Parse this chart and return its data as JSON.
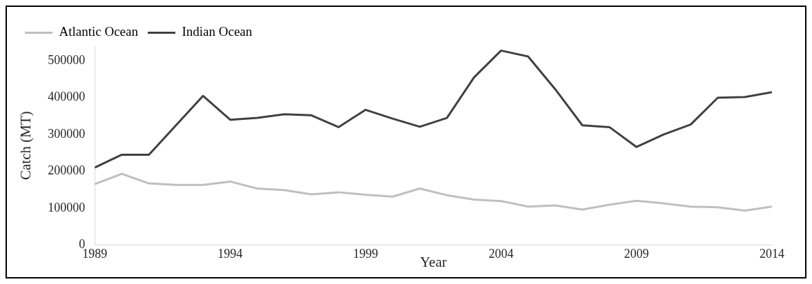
{
  "chart_data": {
    "type": "line",
    "xlabel": "Year",
    "ylabel": "Catch (MT)",
    "x": [
      1989,
      1990,
      1991,
      1992,
      1993,
      1994,
      1995,
      1996,
      1997,
      1998,
      1999,
      2000,
      2001,
      2002,
      2003,
      2004,
      2005,
      2006,
      2007,
      2008,
      2009,
      2010,
      2011,
      2012,
      2013,
      2014
    ],
    "series": [
      {
        "name": "Atlantic Ocean",
        "color": "#bfbfbf",
        "values": [
          165000,
          193000,
          167000,
          163000,
          163000,
          172000,
          153000,
          149000,
          137000,
          143000,
          136000,
          131000,
          153000,
          135000,
          123000,
          119000,
          104000,
          107000,
          96000,
          109000,
          120000,
          113000,
          104000,
          102000,
          93000,
          104000
        ]
      },
      {
        "name": "Indian Ocean",
        "color": "#404040",
        "values": [
          210000,
          245000,
          245000,
          325000,
          405000,
          340000,
          345000,
          355000,
          352000,
          320000,
          367000,
          343000,
          321000,
          345000,
          455000,
          528000,
          512000,
          423000,
          325000,
          320000,
          266000,
          300000,
          327000,
          400000,
          402000,
          415000
        ]
      }
    ],
    "xlim": [
      1989,
      2014
    ],
    "xticks": [
      1989,
      1994,
      1999,
      2004,
      2009,
      2014
    ],
    "ylim": [
      0,
      540000
    ],
    "yticks": [
      0,
      100000,
      200000,
      300000,
      400000,
      500000
    ],
    "grid": false,
    "legend": "top",
    "marker": "none",
    "line_style": "solid"
  }
}
